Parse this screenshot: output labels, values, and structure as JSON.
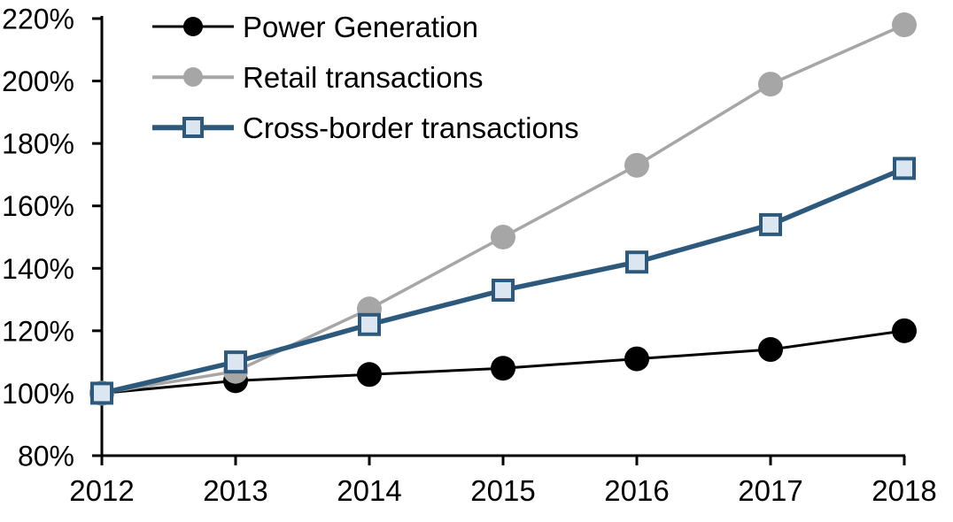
{
  "chart_data": {
    "type": "line",
    "title": "",
    "xlabel": "",
    "ylabel": "",
    "x": [
      2012,
      2013,
      2014,
      2015,
      2016,
      2017,
      2018
    ],
    "x_tick_labels": [
      "2012",
      "2013",
      "2014",
      "2015",
      "2016",
      "2017",
      "2018"
    ],
    "y_ticks": [
      80,
      100,
      120,
      140,
      160,
      180,
      200,
      220
    ],
    "y_tick_labels": [
      "80%",
      "100%",
      "120%",
      "140%",
      "160%",
      "180%",
      "200%",
      "220%"
    ],
    "ylim": [
      80,
      220
    ],
    "grid": false,
    "legend_position": "top-left",
    "axis_color": "#000000",
    "series": [
      {
        "name": "Power Generation",
        "values": [
          100,
          104,
          106,
          108,
          111,
          114,
          120
        ],
        "color": "#000000",
        "marker": "circle",
        "marker_fill": "#000000",
        "marker_size": 28,
        "marker_stroke_width": 0,
        "line_width": 3
      },
      {
        "name": "Retail transactions",
        "values": [
          100,
          107,
          127,
          150,
          173,
          199,
          218
        ],
        "color": "#A6A6A6",
        "marker": "circle",
        "marker_fill": "#A6A6A6",
        "marker_size": 28,
        "marker_stroke_width": 0,
        "line_width": 3.5
      },
      {
        "name": "Cross-border transactions",
        "values": [
          100,
          110,
          122,
          133,
          142,
          154,
          172
        ],
        "color": "#2D5A7C",
        "marker": "square",
        "marker_fill": "#DCE6F1",
        "marker_size": 22,
        "marker_stroke_width": 4,
        "line_width": 5.5
      }
    ]
  }
}
